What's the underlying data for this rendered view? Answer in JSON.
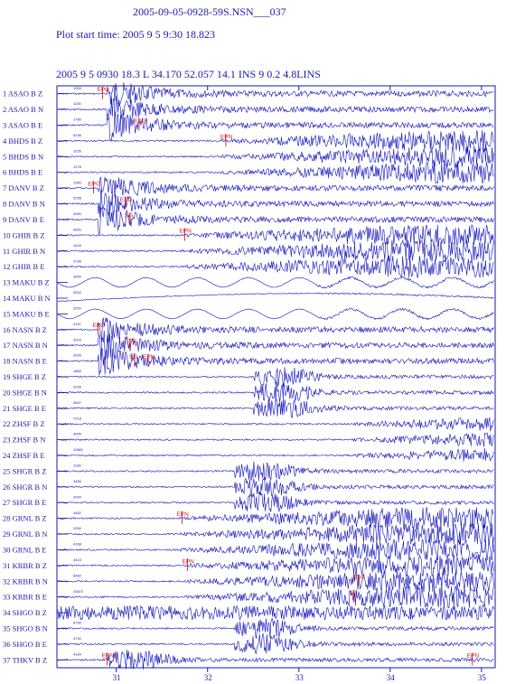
{
  "header": {
    "filename": "2005-09-05-0928-59S.NSN___037",
    "plot_start": "Plot start time: 2005  9  5   9:30  18.823",
    "event_line": "2005  9 5 0930 18.3 L  34.170  52.057  14.1  INS  9 0.2 4.8LINS"
  },
  "colors": {
    "trace": "#1010b8",
    "pick": "#d42020",
    "frame": "#1a1aa8"
  },
  "chart_data": {
    "type": "line",
    "title": "",
    "xlabel": "",
    "ylabel": "",
    "xlim": [
      30.35,
      35.15
    ],
    "xticks": [
      31,
      32,
      33,
      34,
      35
    ],
    "traces": [
      {
        "n": 1,
        "label": "1  ASAO  B Z",
        "amp": "1053",
        "amp2": "",
        "onset": 30.9,
        "envelope": "burst",
        "picks": [
          {
            "t": 30.85,
            "label": "EPG"
          }
        ]
      },
      {
        "n": 2,
        "label": "2  ASAO  B N",
        "amp": "1135",
        "amp2": "",
        "onset": 30.9,
        "envelope": "burst",
        "picks": []
      },
      {
        "n": 3,
        "label": "3  ASAO  B E",
        "amp": "1780",
        "amp2": "",
        "onset": 30.9,
        "envelope": "burst",
        "picks": [
          {
            "t": 31.25,
            "label": "ESG"
          }
        ]
      },
      {
        "n": 4,
        "label": "4  BHDS  B Z",
        "amp": "5236",
        "amp2": "",
        "onset": 32.15,
        "envelope": "late",
        "picks": [
          {
            "t": 32.2,
            "label": "EPN"
          }
        ]
      },
      {
        "n": 5,
        "label": "5  BHDS  B N",
        "amp": "1026",
        "amp2": "",
        "onset": 32.15,
        "envelope": "late",
        "picks": []
      },
      {
        "n": 6,
        "label": "6  BHDS  B E",
        "amp": "1278",
        "amp2": "",
        "onset": 32.15,
        "envelope": "late",
        "picks": []
      },
      {
        "n": 7,
        "label": "7  DANV  B Z",
        "amp": "1080",
        "amp2": "",
        "onset": 30.8,
        "envelope": "burst",
        "picks": [
          {
            "t": 30.75,
            "label": "EPG"
          }
        ]
      },
      {
        "n": 8,
        "label": "8  DANV  B N",
        "amp": "5258",
        "amp2": "",
        "onset": 30.8,
        "envelope": "burst",
        "picks": [
          {
            "t": 31.1,
            "label": "ESG"
          }
        ]
      },
      {
        "n": 9,
        "label": "9  DANV  B E",
        "amp": "4950",
        "amp2": "",
        "onset": 30.8,
        "envelope": "burst",
        "picks": [
          {
            "t": 31.15,
            "label": "SG"
          }
        ]
      },
      {
        "n": 10,
        "label": "10  GHIR  B Z",
        "amp": "4500",
        "amp2": "",
        "onset": 31.7,
        "envelope": "late",
        "picks": [
          {
            "t": 31.75,
            "label": "EPN"
          }
        ]
      },
      {
        "n": 11,
        "label": "11  GHIR  B N",
        "amp": "1043",
        "amp2": "",
        "onset": 31.7,
        "envelope": "late",
        "picks": []
      },
      {
        "n": 12,
        "label": "12  GHIR  B E",
        "amp": "2146",
        "amp2": "",
        "onset": 31.7,
        "envelope": "late",
        "picks": []
      },
      {
        "n": 13,
        "label": "13  MAKU  B Z",
        "amp": "3000",
        "amp2": "",
        "onset": 33.2,
        "envelope": "wavy",
        "picks": []
      },
      {
        "n": 14,
        "label": "14  MAKU  B N",
        "amp": "5202",
        "amp2": "",
        "onset": 33.2,
        "envelope": "drift",
        "picks": []
      },
      {
        "n": 15,
        "label": "15  MAKU  B E",
        "amp": "3202",
        "amp2": "",
        "onset": 33.2,
        "envelope": "wavy",
        "picks": []
      },
      {
        "n": 16,
        "label": "16  NASN  B Z",
        "amp": "4157",
        "amp2": "",
        "onset": 30.8,
        "envelope": "burst",
        "picks": [
          {
            "t": 30.8,
            "label": "EPG"
          }
        ]
      },
      {
        "n": 17,
        "label": "17  NASN  B N",
        "amp": "3003",
        "amp2": "",
        "onset": 30.8,
        "envelope": "burst",
        "picks": [
          {
            "t": 31.15,
            "label": "ESG"
          }
        ]
      },
      {
        "n": 18,
        "label": "18  NASN  B E",
        "amp": "3005",
        "amp2": "",
        "onset": 30.8,
        "envelope": "burst",
        "picks": [
          {
            "t": 31.2,
            "label": "SG"
          },
          {
            "t": 31.35,
            "label": "EPN"
          }
        ]
      },
      {
        "n": 19,
        "label": "19  SHGE  B Z",
        "amp": "1860",
        "amp2": "",
        "onset": 32.5,
        "envelope": "mid",
        "picks": []
      },
      {
        "n": 20,
        "label": "20  SHGE  B N",
        "amp": "2026",
        "amp2": "",
        "onset": 32.5,
        "envelope": "mid",
        "picks": []
      },
      {
        "n": 21,
        "label": "21  SHGE  B E",
        "amp": "3847",
        "amp2": "",
        "onset": 32.5,
        "envelope": "mid",
        "picks": []
      },
      {
        "n": 22,
        "label": "22  ZHSF  B Z",
        "amp": "7218",
        "amp2": "",
        "onset": 33.6,
        "envelope": "late",
        "picks": []
      },
      {
        "n": 23,
        "label": "23  ZHSF  B N",
        "amp": "3005",
        "amp2": "",
        "onset": 33.6,
        "envelope": "late",
        "picks": []
      },
      {
        "n": 24,
        "label": "24  ZHSF  B E",
        "amp": "10861",
        "amp2": "",
        "onset": 33.6,
        "envelope": "late",
        "picks": []
      },
      {
        "n": 25,
        "label": "25  SHGR  B Z",
        "amp": "1136",
        "amp2": "",
        "onset": 32.3,
        "envelope": "mid",
        "picks": []
      },
      {
        "n": 26,
        "label": "26  SHGR  B N",
        "amp": "3450",
        "amp2": "",
        "onset": 32.3,
        "envelope": "mid",
        "picks": []
      },
      {
        "n": 27,
        "label": "27  SHGR  B E",
        "amp": "2000",
        "amp2": "",
        "onset": 32.3,
        "envelope": "mid",
        "picks": []
      },
      {
        "n": 28,
        "label": "28  GRNL  B Z",
        "amp": "4482",
        "amp2": "",
        "onset": 31.7,
        "envelope": "late",
        "picks": [
          {
            "t": 31.72,
            "label": "EPN"
          }
        ]
      },
      {
        "n": 29,
        "label": "29  GRNL  B N",
        "amp": "2050",
        "amp2": "",
        "onset": 31.7,
        "envelope": "late",
        "picks": []
      },
      {
        "n": 30,
        "label": "30  GRNL  B E",
        "amp": "4168",
        "amp2": "",
        "onset": 31.7,
        "envelope": "late",
        "picks": []
      },
      {
        "n": 31,
        "label": "31  KRBR  B Z",
        "amp": "3415",
        "amp2": "",
        "onset": 31.75,
        "envelope": "late",
        "picks": [
          {
            "t": 31.78,
            "label": "EPN"
          }
        ]
      },
      {
        "n": 32,
        "label": "32  KRBR  B N",
        "amp": "6482",
        "amp2": "",
        "onset": 31.75,
        "envelope": "late",
        "picks": [
          {
            "t": 33.65,
            "label": "ESG"
          }
        ]
      },
      {
        "n": 33,
        "label": "33  KRBR  B E",
        "amp": "10872",
        "amp2": "",
        "onset": 31.75,
        "envelope": "late",
        "picks": [
          {
            "t": 33.6,
            "label": "SG"
          }
        ]
      },
      {
        "n": 34,
        "label": "34  SHGO  B Z",
        "amp": "",
        "amp2": "",
        "onset": 30.35,
        "envelope": "noise",
        "picks": []
      },
      {
        "n": 35,
        "label": "35  SHGO  B N",
        "amp": "8750",
        "amp2": "",
        "onset": 32.3,
        "envelope": "mid",
        "picks": []
      },
      {
        "n": 36,
        "label": "36  SHGO  B E",
        "amp": "3750",
        "amp2": "",
        "onset": 32.3,
        "envelope": "mid",
        "picks": []
      },
      {
        "n": 37,
        "label": "37  THKV  B Z",
        "amp": "4184",
        "amp2": "",
        "onset": 30.9,
        "envelope": "mid",
        "picks": [
          {
            "t": 30.9,
            "label": "EPN"
          },
          {
            "t": 34.9,
            "label": "EPN"
          }
        ]
      }
    ]
  }
}
